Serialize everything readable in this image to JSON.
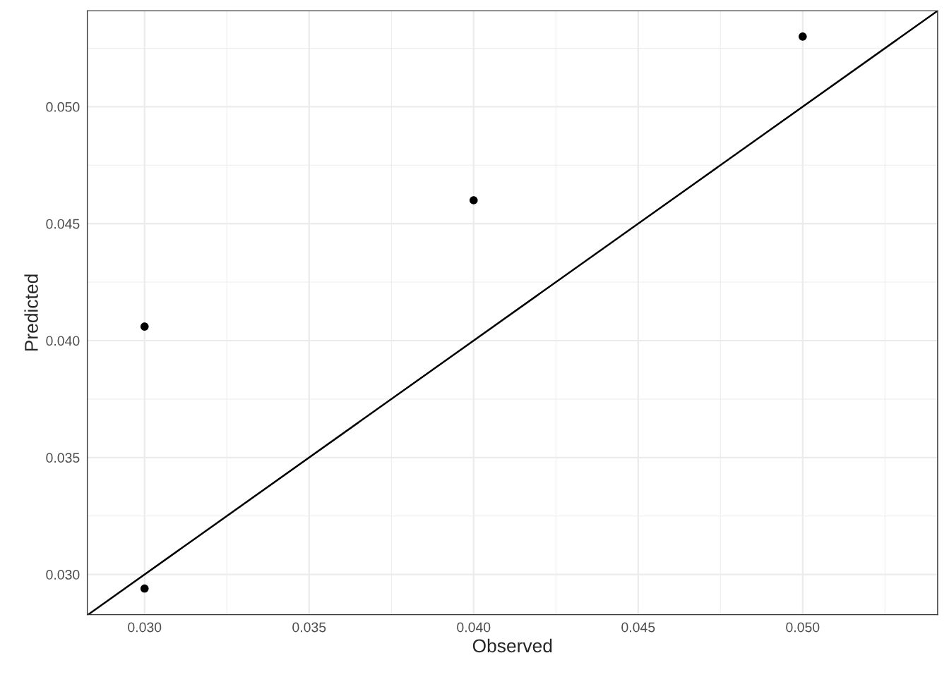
{
  "chart_data": {
    "type": "scatter",
    "xlabel": "Observed",
    "ylabel": "Predicted",
    "x": [
      0.03,
      0.03,
      0.04,
      0.05
    ],
    "series": [
      {
        "type": "scatter",
        "color": "#000000",
        "values": [
          0.0294,
          0.0406,
          0.046,
          0.053
        ],
        "marker": "circle"
      },
      {
        "type": "line",
        "color": "#000000",
        "x": [
          0.02828,
          0.0541
        ],
        "values": [
          0.02828,
          0.0541
        ],
        "line_style": "solid"
      }
    ],
    "xlim": [
      0.02826,
      0.0541
    ],
    "ylim": [
      0.02828,
      0.0541
    ],
    "xticks": [
      {
        "value": 0.03,
        "label": "0.030"
      },
      {
        "value": 0.035,
        "label": "0.035"
      },
      {
        "value": 0.04,
        "label": "0.040"
      },
      {
        "value": 0.045,
        "label": "0.045"
      },
      {
        "value": 0.05,
        "label": "0.050"
      }
    ],
    "yticks": [
      {
        "value": 0.03,
        "label": "0.030"
      },
      {
        "value": 0.035,
        "label": "0.035"
      },
      {
        "value": 0.04,
        "label": "0.040"
      },
      {
        "value": 0.045,
        "label": "0.045"
      },
      {
        "value": 0.05,
        "label": "0.050"
      }
    ],
    "grid": true,
    "legend": false
  }
}
